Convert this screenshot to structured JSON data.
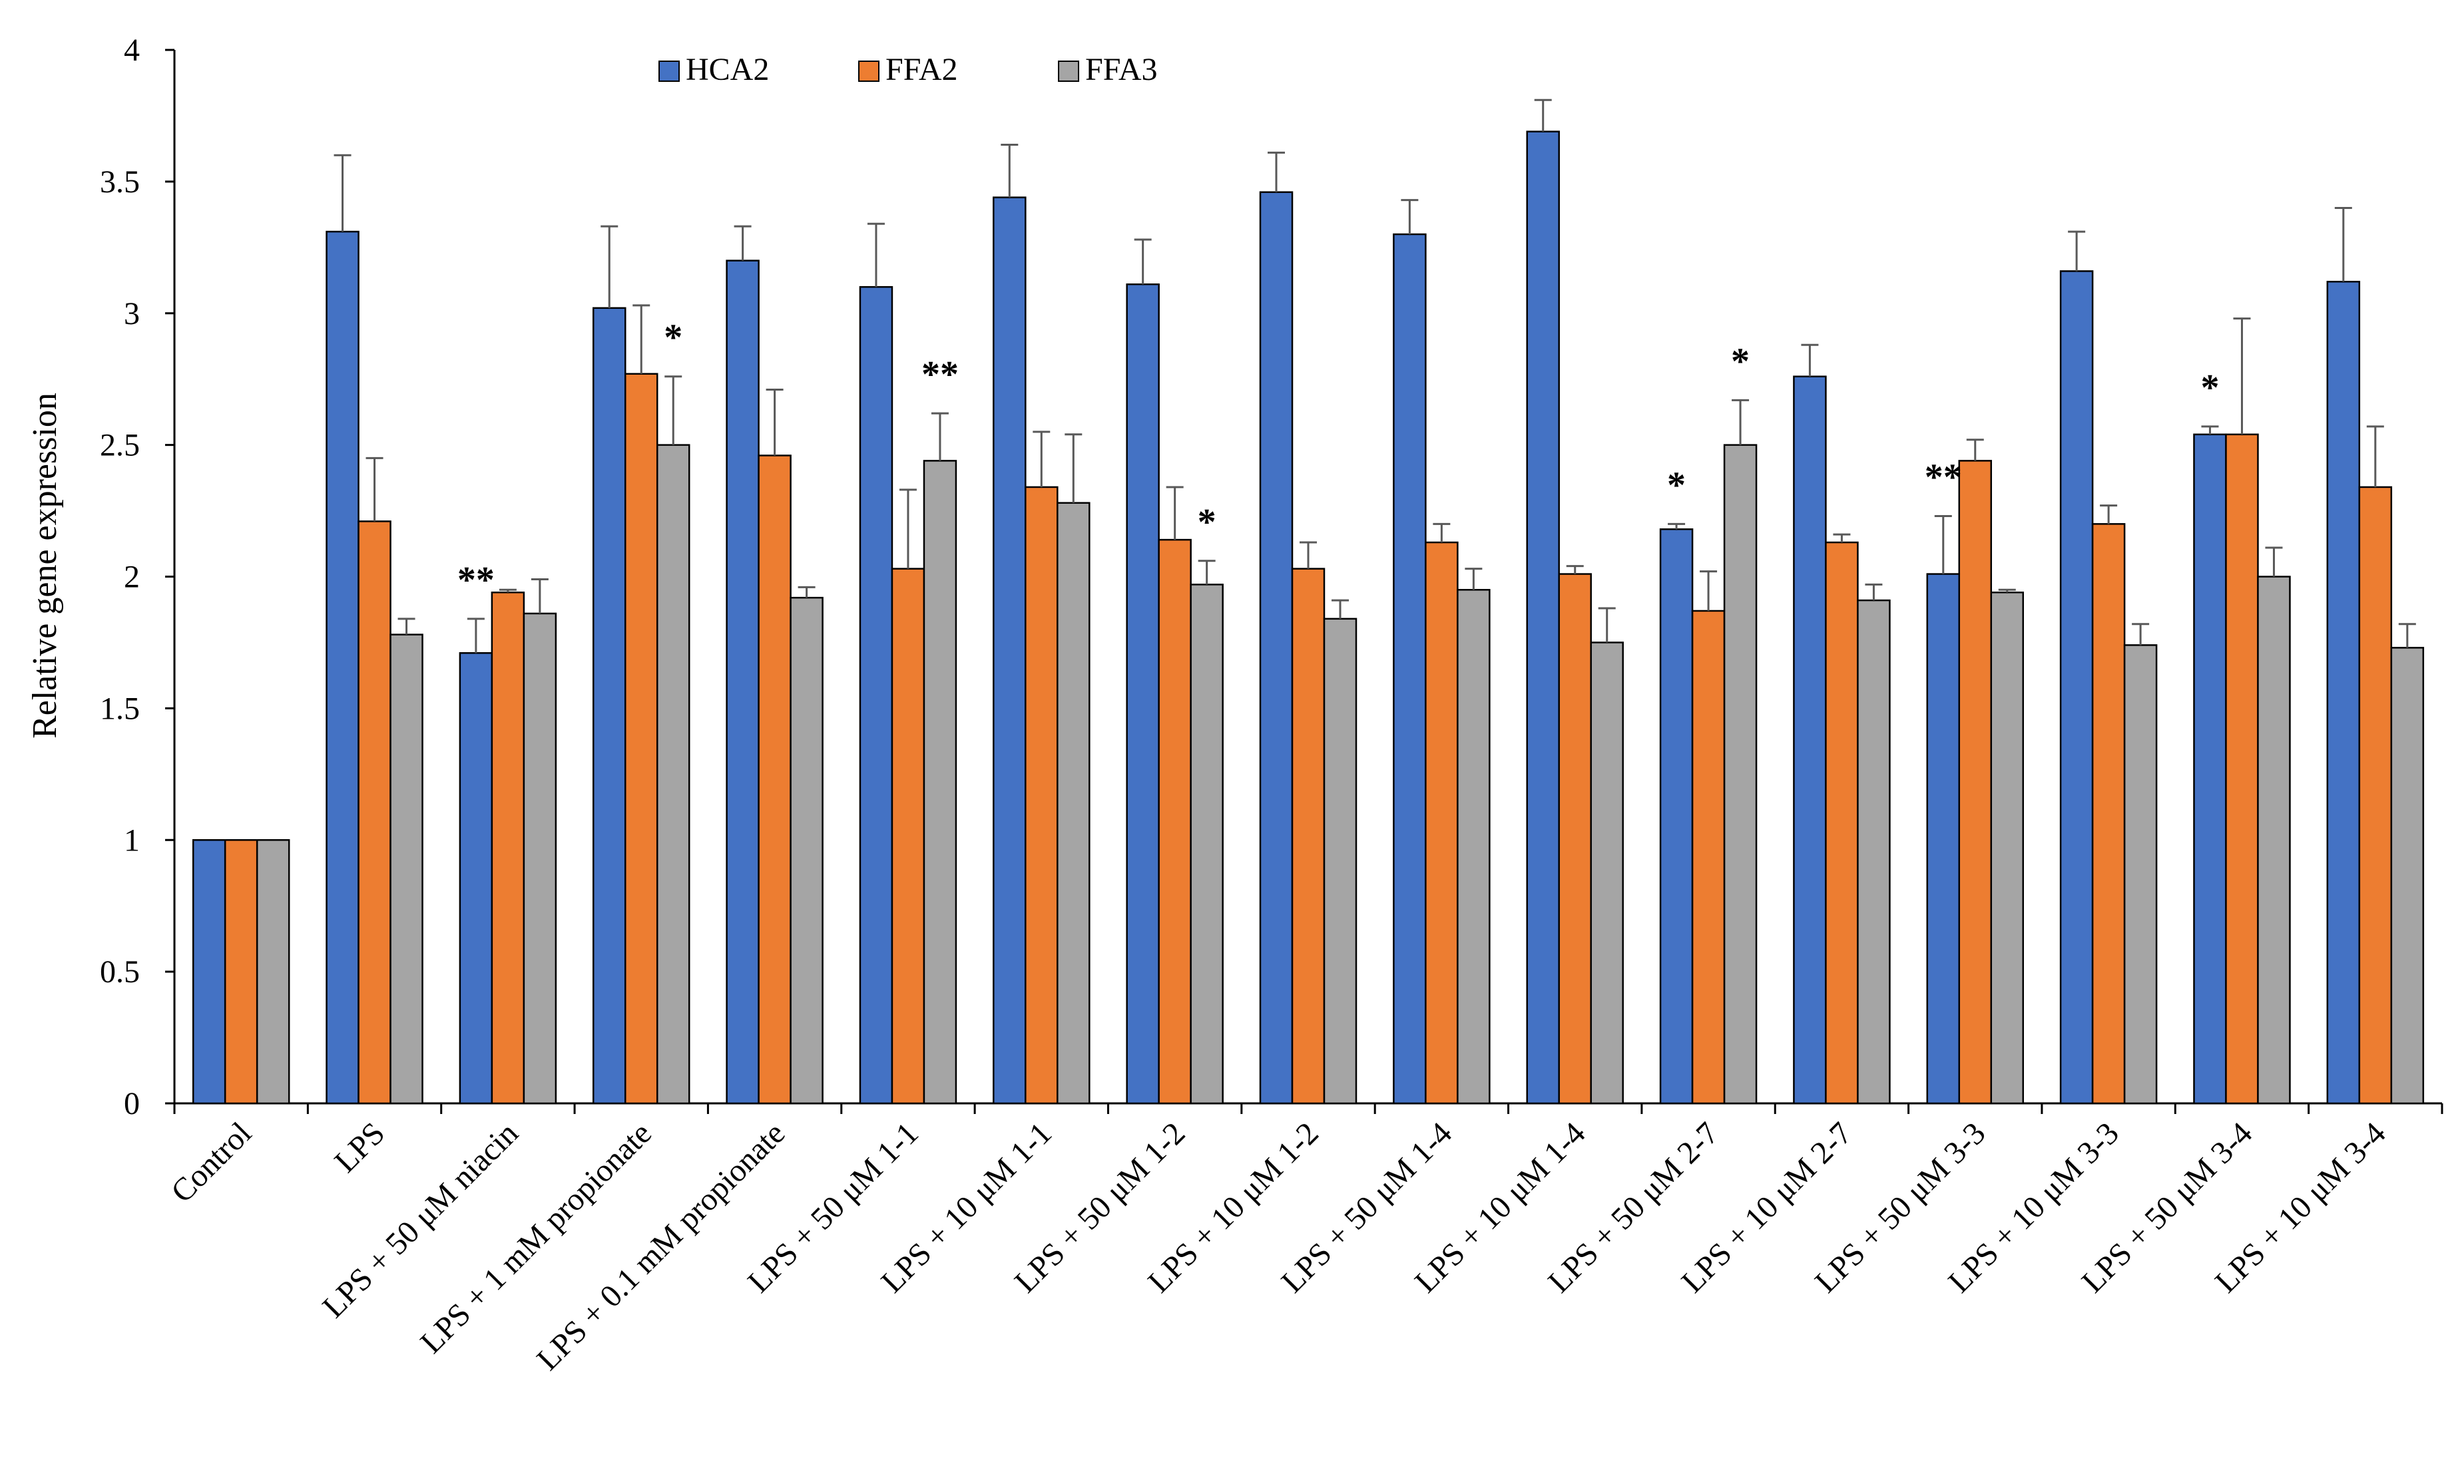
{
  "chart_data": {
    "type": "bar",
    "title": "",
    "xlabel": "",
    "ylabel": "Relative gene expression",
    "ylim": [
      0,
      4
    ],
    "yticks": [
      "0",
      "0.5",
      "1",
      "1.5",
      "2",
      "2.5",
      "3",
      "3.5",
      "4"
    ],
    "grid": false,
    "legend_position": "top-center",
    "categories": [
      "Control",
      "LPS",
      "LPS + 50 μM niacin",
      "LPS + 1 mM propionate",
      "LPS + 0.1 mM propionate",
      "LPS +  50 μM 1-1",
      "LPS +  10 μM 1-1",
      "LPS +  50 μM 1-2",
      "LPS +  10 μM 1-2",
      "LPS +  50 μM 1-4",
      "LPS +  10 μM 1-4",
      "LPS +  50 μM 2-7",
      "LPS +  10 μM 2-7",
      "LPS +  50 μM 3-3",
      "LPS +  10 μM 3-3",
      "LPS +  50 μM 3-4",
      "LPS +  10 μM 3-4"
    ],
    "series": [
      {
        "name": "HCA2",
        "color": "#4472C4",
        "values": [
          1,
          3.31,
          1.71,
          3.02,
          3.2,
          3.1,
          3.44,
          3.11,
          3.46,
          3.3,
          3.69,
          2.18,
          2.76,
          2.01,
          3.16,
          2.54,
          3.12
        ],
        "errors": [
          0,
          0.29,
          0.13,
          0.31,
          0.13,
          0.24,
          0.2,
          0.17,
          0.15,
          0.13,
          0.12,
          0.02,
          0.12,
          0.22,
          0.15,
          0.03,
          0.28
        ]
      },
      {
        "name": "FFA2",
        "color": "#ED7D31",
        "values": [
          1,
          2.21,
          1.94,
          2.77,
          2.46,
          2.03,
          2.34,
          2.14,
          2.03,
          2.13,
          2.01,
          1.87,
          2.13,
          2.44,
          2.2,
          2.54,
          2.34
        ],
        "errors": [
          0,
          0.24,
          0.01,
          0.26,
          0.25,
          0.3,
          0.21,
          0.2,
          0.1,
          0.07,
          0.03,
          0.15,
          0.03,
          0.08,
          0.07,
          0.44,
          0.23
        ]
      },
      {
        "name": "FFA3",
        "color": "#A5A5A5",
        "values": [
          1,
          1.78,
          1.86,
          2.5,
          1.92,
          2.44,
          2.28,
          1.97,
          1.84,
          1.95,
          1.75,
          2.5,
          1.91,
          1.94,
          1.74,
          2.0,
          1.73
        ],
        "errors": [
          0,
          0.06,
          0.13,
          0.26,
          0.04,
          0.18,
          0.26,
          0.09,
          0.07,
          0.08,
          0.13,
          0.17,
          0.06,
          0.01,
          0.08,
          0.11,
          0.09
        ]
      }
    ],
    "annotations": [
      {
        "category": 2,
        "series": 0,
        "text": "**"
      },
      {
        "category": 3,
        "series": 2,
        "text": "*"
      },
      {
        "category": 5,
        "series": 2,
        "text": "**"
      },
      {
        "category": 7,
        "series": 2,
        "text": "*"
      },
      {
        "category": 11,
        "series": 0,
        "text": "*"
      },
      {
        "category": 11,
        "series": 2,
        "text": "*"
      },
      {
        "category": 13,
        "series": 0,
        "text": "**"
      },
      {
        "category": 15,
        "series": 0,
        "text": "*"
      }
    ]
  }
}
